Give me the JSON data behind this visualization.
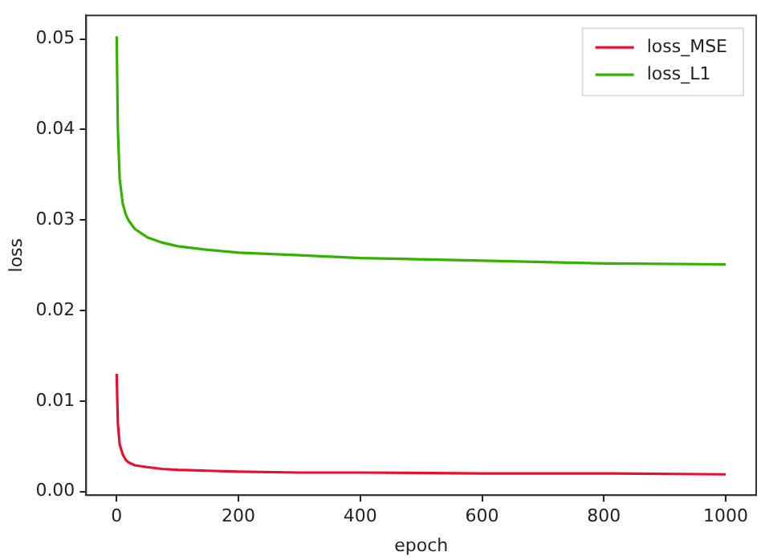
{
  "chart_data": {
    "type": "line",
    "xlabel": "epoch",
    "ylabel": "loss",
    "xlim": [
      -50,
      1050
    ],
    "ylim": [
      -0.0004,
      0.0526
    ],
    "xticks": [
      0,
      200,
      400,
      600,
      800,
      1000
    ],
    "yticks": [
      {
        "value": 0,
        "label": "0.00"
      },
      {
        "value": 0.01,
        "label": "0.01"
      },
      {
        "value": 0.02,
        "label": "0.02"
      },
      {
        "value": 0.03,
        "label": "0.03"
      },
      {
        "value": 0.04,
        "label": "0.04"
      },
      {
        "value": 0.05,
        "label": "0.05"
      }
    ],
    "grid": false,
    "legend": "top right",
    "marker": "none",
    "line_style": "solid",
    "x": [
      0,
      2,
      5,
      10,
      15,
      20,
      30,
      50,
      75,
      100,
      150,
      200,
      300,
      400,
      600,
      800,
      1000
    ],
    "series": [
      {
        "name": "loss_MSE",
        "color": "#e8102e",
        "values": [
          0.013,
          0.0075,
          0.0052,
          0.0041,
          0.0035,
          0.0032,
          0.0029,
          0.0027,
          0.0025,
          0.0024,
          0.0023,
          0.0022,
          0.0021,
          0.0021,
          0.002,
          0.002,
          0.0019
        ]
      },
      {
        "name": "loss_L1",
        "color": "#33b300",
        "values": [
          0.0503,
          0.04,
          0.0345,
          0.0318,
          0.0306,
          0.0299,
          0.029,
          0.0281,
          0.0275,
          0.0271,
          0.0267,
          0.0264,
          0.0261,
          0.0258,
          0.0255,
          0.0252,
          0.0251
        ]
      }
    ]
  }
}
